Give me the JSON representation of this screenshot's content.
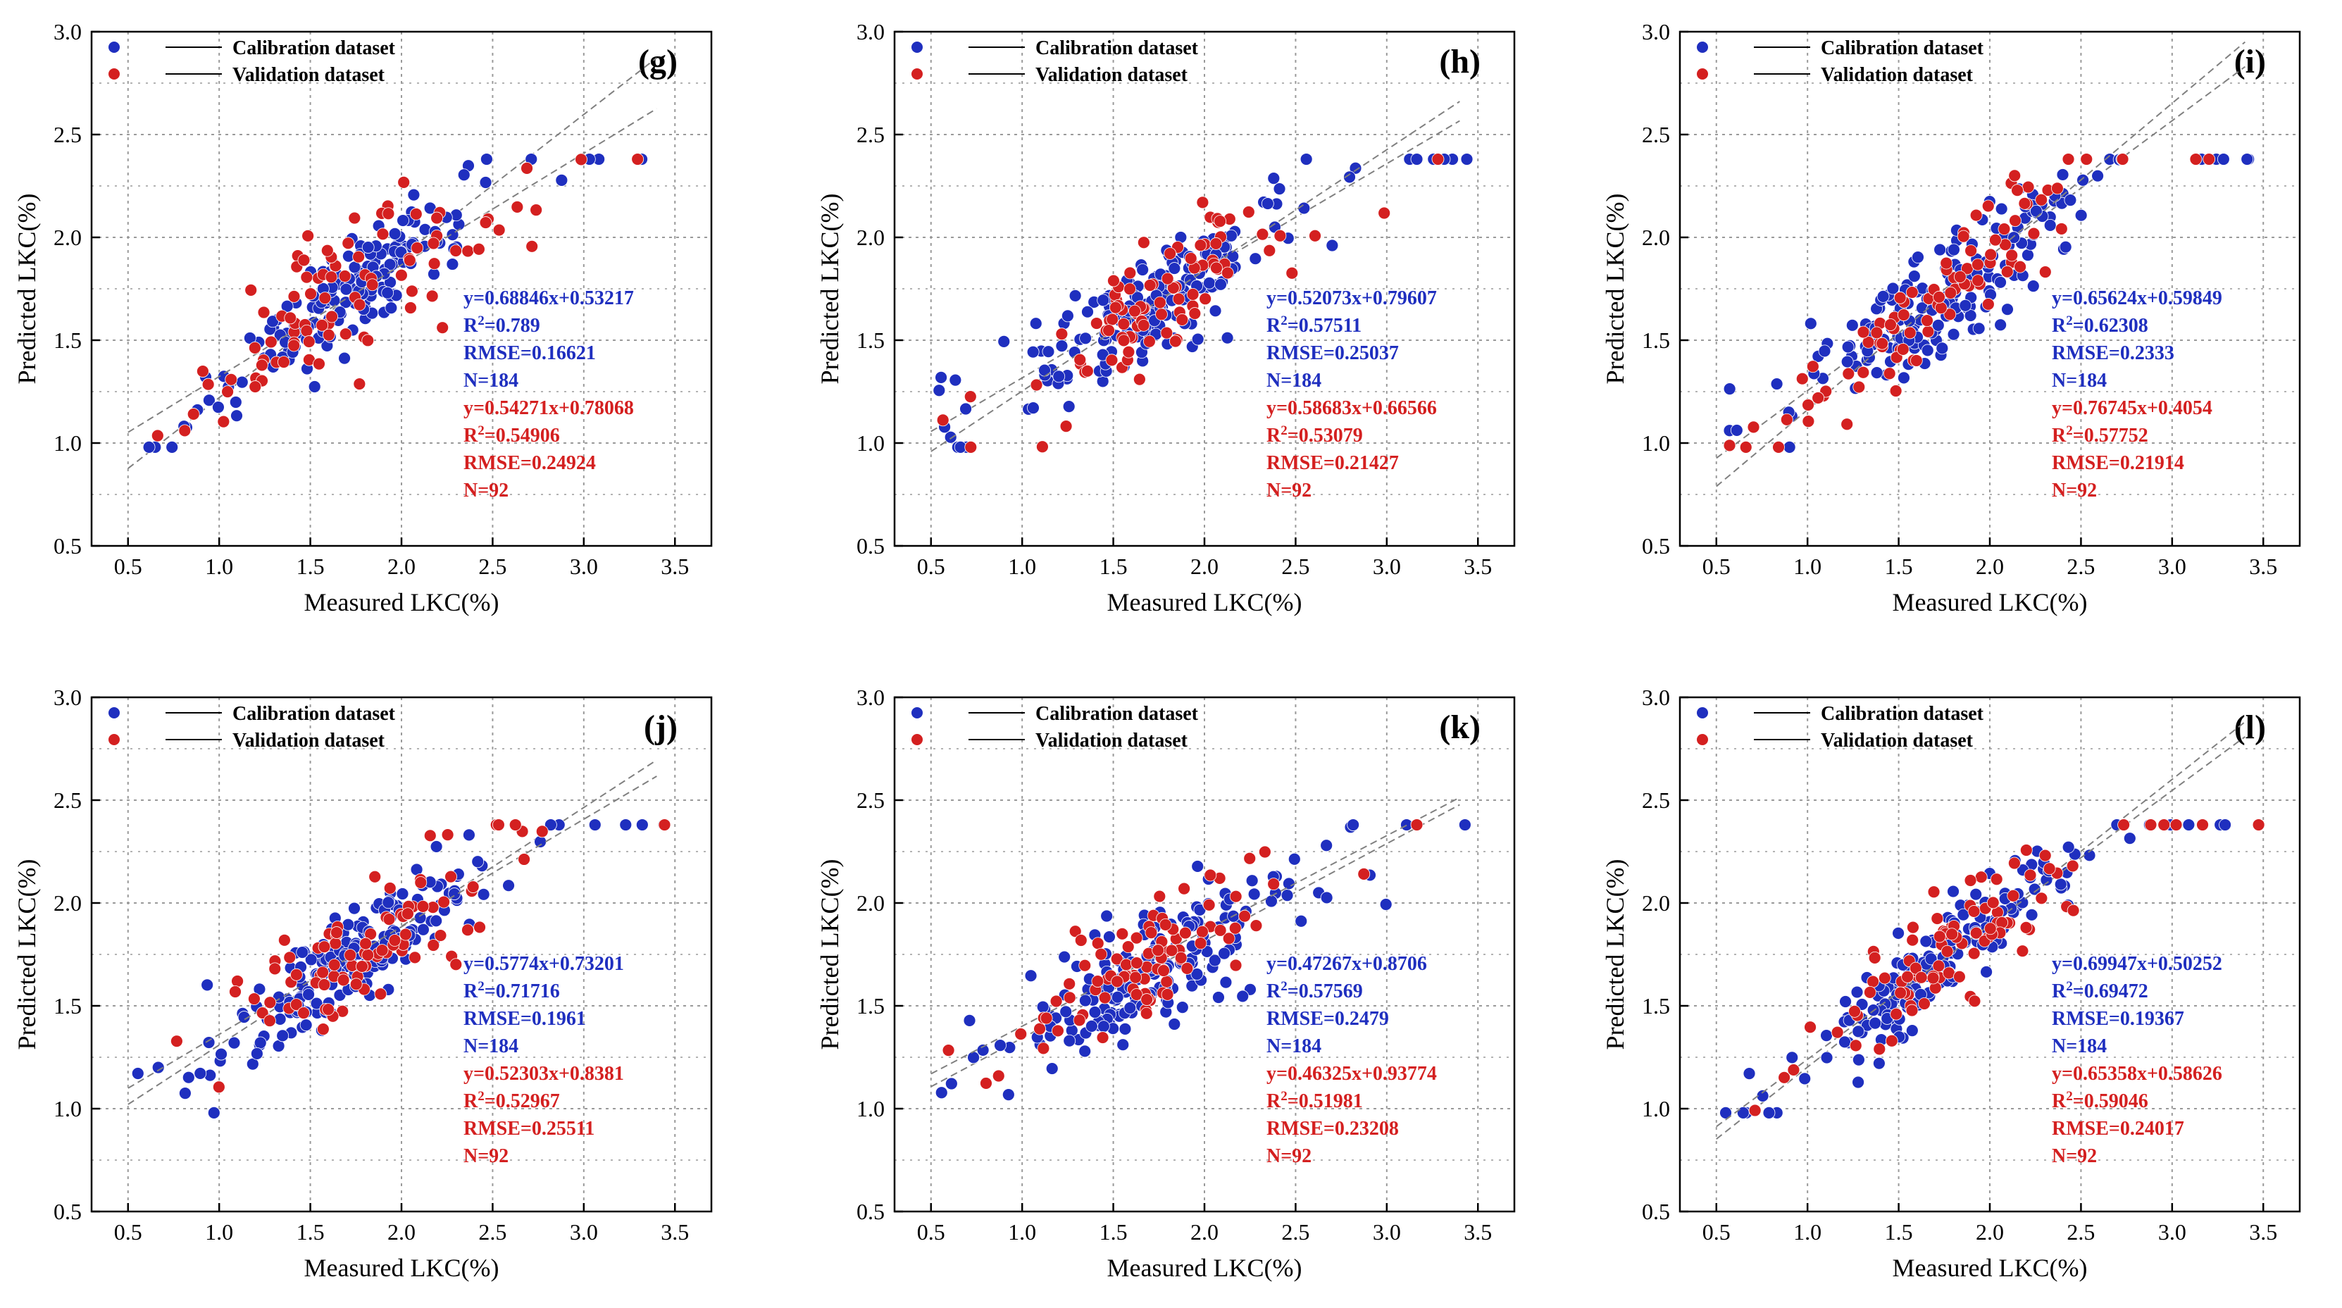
{
  "colors": {
    "calibration": "#1f2fbf",
    "validation": "#d42020",
    "axis": "#000000",
    "grid": "#9a9a9a",
    "fitline": "#808080"
  },
  "legend": {
    "calibration": "Calibration dataset",
    "validation": "Validation dataset"
  },
  "axes": {
    "xlabel": "Measured LKC(%)",
    "ylabel": "Predicted LKC(%)",
    "xlim": [
      0.3,
      3.7
    ],
    "ylim": [
      0.5,
      3.0
    ],
    "xticks": [
      "0.5",
      "1.0",
      "1.5",
      "2.0",
      "2.5",
      "3.0",
      "3.5"
    ],
    "yticks": [
      "0.5",
      "1.0",
      "1.5",
      "2.0",
      "2.5",
      "3.0"
    ]
  },
  "chart_data": [
    {
      "type": "scatter",
      "panel": "(g)",
      "xlabel": "Measured LKC(%)",
      "ylabel": "Predicted LKC(%)",
      "xlim": [
        0.3,
        3.7
      ],
      "ylim": [
        0.5,
        3.0
      ],
      "series": [
        {
          "name": "Calibration dataset",
          "slope": 0.68846,
          "intercept": 0.53217,
          "n": 184,
          "spread": 0.16
        },
        {
          "name": "Validation dataset",
          "slope": 0.54271,
          "intercept": 0.78068,
          "n": 92,
          "spread": 0.22
        }
      ],
      "annotations": {
        "calibration": [
          "y=0.68846x+0.53217",
          "R2=0.789",
          "RMSE=0.16621",
          "N=184"
        ],
        "validation": [
          "y=0.54271x+0.78068",
          "R2=0.54906",
          "RMSE=0.24924",
          "N=92"
        ]
      }
    },
    {
      "type": "scatter",
      "panel": "(h)",
      "xlabel": "Measured LKC(%)",
      "ylabel": "Predicted LKC(%)",
      "xlim": [
        0.3,
        3.7
      ],
      "ylim": [
        0.5,
        3.0
      ],
      "series": [
        {
          "name": "Calibration dataset",
          "slope": 0.52073,
          "intercept": 0.79607,
          "n": 184,
          "spread": 0.2
        },
        {
          "name": "Validation dataset",
          "slope": 0.58683,
          "intercept": 0.66566,
          "n": 92,
          "spread": 0.2
        }
      ],
      "annotations": {
        "calibration": [
          "y=0.52073x+0.79607",
          "R2=0.57511",
          "RMSE=0.25037",
          "N=184"
        ],
        "validation": [
          "y=0.58683x+0.66566",
          "R2=0.53079",
          "RMSE=0.21427",
          "N=92"
        ]
      }
    },
    {
      "type": "scatter",
      "panel": "(i)",
      "xlabel": "Measured LKC(%)",
      "ylabel": "Predicted LKC(%)",
      "xlim": [
        0.3,
        3.7
      ],
      "ylim": [
        0.5,
        3.0
      ],
      "series": [
        {
          "name": "Calibration dataset",
          "slope": 0.65624,
          "intercept": 0.59849,
          "n": 184,
          "spread": 0.2
        },
        {
          "name": "Validation dataset",
          "slope": 0.76745,
          "intercept": 0.4054,
          "n": 92,
          "spread": 0.2
        }
      ],
      "annotations": {
        "calibration": [
          "y=0.65624x+0.59849",
          "R2=0.62308",
          "RMSE=0.2333",
          "N=184"
        ],
        "validation": [
          "y=0.76745x+0.4054",
          "R2=0.57752",
          "RMSE=0.21914",
          "N=92"
        ]
      }
    },
    {
      "type": "scatter",
      "panel": "(j)",
      "xlabel": "Measured LKC(%)",
      "ylabel": "Predicted LKC(%)",
      "xlim": [
        0.3,
        3.7
      ],
      "ylim": [
        0.5,
        3.0
      ],
      "series": [
        {
          "name": "Calibration dataset",
          "slope": 0.5774,
          "intercept": 0.73201,
          "n": 184,
          "spread": 0.17
        },
        {
          "name": "Validation dataset",
          "slope": 0.52303,
          "intercept": 0.8381,
          "n": 92,
          "spread": 0.22
        }
      ],
      "annotations": {
        "calibration": [
          "y=0.5774x+0.73201",
          "R2=0.71716",
          "RMSE=0.1961",
          "N=184"
        ],
        "validation": [
          "y=0.52303x+0.8381",
          "R2=0.52967",
          "RMSE=0.25511",
          "N=92"
        ]
      }
    },
    {
      "type": "scatter",
      "panel": "(k)",
      "xlabel": "Measured LKC(%)",
      "ylabel": "Predicted LKC(%)",
      "xlim": [
        0.3,
        3.7
      ],
      "ylim": [
        0.5,
        3.0
      ],
      "series": [
        {
          "name": "Calibration dataset",
          "slope": 0.47267,
          "intercept": 0.8706,
          "n": 184,
          "spread": 0.2
        },
        {
          "name": "Validation dataset",
          "slope": 0.46325,
          "intercept": 0.93774,
          "n": 92,
          "spread": 0.19
        }
      ],
      "annotations": {
        "calibration": [
          "y=0.47267x+0.8706",
          "R2=0.57569",
          "RMSE=0.2479",
          "N=184"
        ],
        "validation": [
          "y=0.46325x+0.93774",
          "R2=0.51981",
          "RMSE=0.23208",
          "N=92"
        ]
      }
    },
    {
      "type": "scatter",
      "panel": "(l)",
      "xlabel": "Measured LKC(%)",
      "ylabel": "Predicted LKC(%)",
      "xlim": [
        0.3,
        3.7
      ],
      "ylim": [
        0.5,
        3.0
      ],
      "series": [
        {
          "name": "Calibration dataset",
          "slope": 0.69947,
          "intercept": 0.50252,
          "n": 184,
          "spread": 0.18
        },
        {
          "name": "Validation dataset",
          "slope": 0.65358,
          "intercept": 0.58626,
          "n": 92,
          "spread": 0.2
        }
      ],
      "annotations": {
        "calibration": [
          "y=0.69947x+0.50252",
          "R2=0.69472",
          "RMSE=0.19367",
          "N=184"
        ],
        "validation": [
          "y=0.65358x+0.58626",
          "R2=0.59046",
          "RMSE=0.24017",
          "N=92"
        ]
      }
    }
  ]
}
